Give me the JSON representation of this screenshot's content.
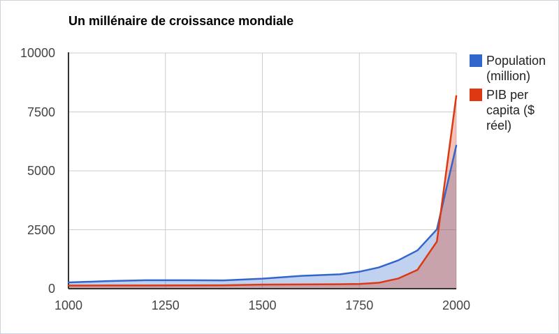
{
  "chart_data": {
    "type": "area",
    "title": "Un millénaire de croissance mondiale",
    "xlabel": "",
    "ylabel": "",
    "x": [
      1000,
      1100,
      1200,
      1300,
      1400,
      1500,
      1600,
      1700,
      1750,
      1800,
      1850,
      1900,
      1950,
      2000
    ],
    "series": [
      {
        "name": "Population (million)",
        "color": "#3366CC",
        "values": [
          265,
          320,
          360,
          360,
          350,
          425,
          545,
          610,
          720,
          900,
          1200,
          1625,
          2516,
          6071
        ]
      },
      {
        "name": "PIB per capita ($ réel)",
        "color": "#DC3912",
        "values": [
          133,
          135,
          137,
          141,
          145,
          175,
          180,
          190,
          200,
          250,
          430,
          800,
          2000,
          8175
        ]
      }
    ],
    "xlim": [
      1000,
      2000
    ],
    "ylim": [
      0,
      10000
    ],
    "x_ticks": [
      1000,
      1250,
      1500,
      1750,
      2000
    ],
    "y_ticks": [
      0,
      2500,
      5000,
      7500,
      10000
    ],
    "grid": true,
    "legend_position": "right",
    "fill_opacity": 0.3
  },
  "style": {
    "grid_color": "#cccccc",
    "axis_color": "#333333",
    "title_color": "#000000",
    "tick_label_color": "#444444",
    "legend_text_color": "#222222",
    "background": "#ffffff",
    "frame_border_color": "#ccd3dd"
  }
}
